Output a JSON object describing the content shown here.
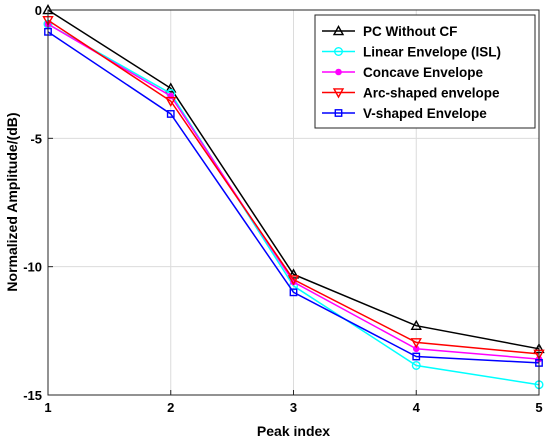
{
  "chart_data": {
    "type": "line",
    "title": "",
    "xlabel": "Peak index",
    "ylabel": "Normalized Amplitude/(dB)",
    "x": [
      1,
      2,
      3,
      4,
      5
    ],
    "xlim": [
      1,
      5
    ],
    "ylim": [
      -15,
      0
    ],
    "xticks": [
      1,
      2,
      3,
      4,
      5
    ],
    "yticks": [
      -15,
      -10,
      -5,
      0
    ],
    "grid": true,
    "legend_position": "top-right",
    "series": [
      {
        "name": "PC Without CF",
        "color": "#000000",
        "marker": "triangle-up",
        "values": [
          0,
          -3.05,
          -10.3,
          -12.3,
          -13.2
        ]
      },
      {
        "name": "Linear Envelope (ISL)",
        "color": "#00ffff",
        "marker": "circle",
        "values": [
          -0.55,
          -3.25,
          -10.75,
          -13.85,
          -14.6
        ]
      },
      {
        "name": "Concave Envelope",
        "color": "#ff00ff",
        "marker": "asterisk",
        "values": [
          -0.55,
          -3.35,
          -10.6,
          -13.2,
          -13.6
        ]
      },
      {
        "name": "Arc-shaped envelope",
        "color": "#ff0000",
        "marker": "triangle-down",
        "values": [
          -0.4,
          -3.55,
          -10.5,
          -12.95,
          -13.4
        ]
      },
      {
        "name": "V-shaped Envelope",
        "color": "#0000ff",
        "marker": "square",
        "values": [
          -0.85,
          -4.05,
          -11.0,
          -13.5,
          -13.75
        ]
      }
    ]
  }
}
